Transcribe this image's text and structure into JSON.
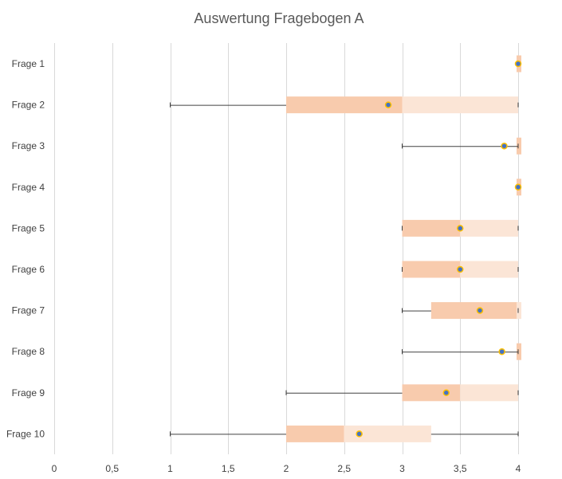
{
  "chart_data": {
    "type": "box",
    "orientation": "horizontal",
    "title": "Auswertung Fragebogen A",
    "xlim": [
      0,
      4
    ],
    "x_ticks": [
      0,
      0.5,
      1,
      1.5,
      2,
      2.5,
      3,
      3.5,
      4
    ],
    "x_tick_labels": [
      "0",
      "0,5",
      "1",
      "1,5",
      "2",
      "2,5",
      "3",
      "3,5",
      "4"
    ],
    "grid": "vertical",
    "categories": [
      "Frage 1",
      "Frage 2",
      "Frage 3",
      "Frage 4",
      "Frage 5",
      "Frage 6",
      "Frage 7",
      "Frage 8",
      "Frage 9",
      "Frage 10"
    ],
    "boxes": [
      {
        "min": 4,
        "q1": 4,
        "median": 4,
        "q3": 4,
        "max": 4,
        "mean": 4
      },
      {
        "min": 1,
        "q1": 2,
        "median": 3,
        "q3": 4,
        "max": 4,
        "mean": 2.88
      },
      {
        "min": 3,
        "q1": 4,
        "median": 4,
        "q3": 4,
        "max": 4,
        "mean": 3.88
      },
      {
        "min": 4,
        "q1": 4,
        "median": 4,
        "q3": 4,
        "max": 4,
        "mean": 4
      },
      {
        "min": 3,
        "q1": 3,
        "median": 3.5,
        "q3": 4,
        "max": 4,
        "mean": 3.5
      },
      {
        "min": 3,
        "q1": 3,
        "median": 3.5,
        "q3": 4,
        "max": 4,
        "mean": 3.5
      },
      {
        "min": 3,
        "q1": 3.25,
        "median": 4,
        "q3": 4,
        "max": 4,
        "mean": 3.67
      },
      {
        "min": 3,
        "q1": 4,
        "median": 4,
        "q3": 4,
        "max": 4,
        "mean": 3.86
      },
      {
        "min": 2,
        "q1": 3,
        "median": 3.5,
        "q3": 4,
        "max": 4,
        "mean": 3.38
      },
      {
        "min": 1,
        "q1": 2,
        "median": 2.5,
        "q3": 3.25,
        "max": 4,
        "mean": 2.63
      }
    ],
    "colors": {
      "box_lower": "#f8cbad",
      "box_upper": "#fbe5d6",
      "whisker": "#404040",
      "gridline": "#d9d9d9",
      "mean_fill": "#4472c4",
      "mean_stroke": "#ffc000",
      "title": "#595959",
      "labels": "#404040"
    }
  }
}
